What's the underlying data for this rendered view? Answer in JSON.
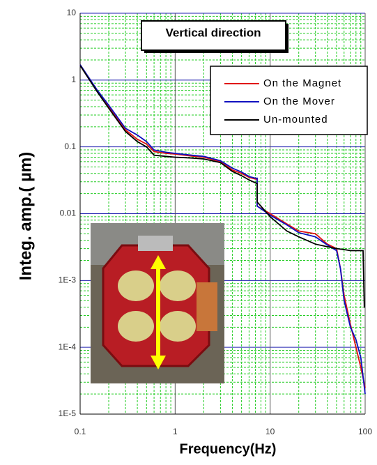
{
  "chart_data": {
    "type": "line",
    "title": "Vertical direction",
    "x_label": "Frequency(Hz)",
    "y_label": "Integ. amp.(  µm)",
    "log_x": true,
    "log_y": true,
    "grid": true,
    "legend": "upper right",
    "xlim": [
      0.1,
      100
    ],
    "xticks": [
      0.1,
      1,
      10,
      100
    ],
    "ylim": [
      1e-05,
      10
    ],
    "yticks": [
      {
        "value": 1e-05,
        "label": "1E-5"
      },
      {
        "value": 0.0001,
        "label": "1E-4"
      },
      {
        "value": 0.001,
        "label": "1E-3"
      },
      0.01,
      0.1,
      1,
      10
    ],
    "series": [
      {
        "name": "On the Magnet",
        "color": "#e01010",
        "x": [
          0.1,
          0.15,
          0.2,
          0.3,
          0.4,
          0.5,
          0.6,
          0.8,
          1,
          1.5,
          2,
          3,
          4,
          5,
          6,
          7,
          7.3,
          7.3,
          10,
          15,
          20,
          30,
          40,
          50,
          55,
          60,
          70,
          80,
          90,
          100
        ],
        "values": [
          1.7,
          0.7,
          0.4,
          0.18,
          0.13,
          0.11,
          0.085,
          0.08,
          0.078,
          0.073,
          0.07,
          0.06,
          0.045,
          0.04,
          0.035,
          0.033,
          0.033,
          0.013,
          0.01,
          0.007,
          0.0055,
          0.005,
          0.0035,
          0.003,
          0.0015,
          0.0006,
          0.00022,
          0.0001,
          5e-05,
          2.5e-05
        ]
      },
      {
        "name": "On the Mover",
        "color": "#1010c0",
        "x": [
          0.1,
          0.15,
          0.2,
          0.3,
          0.4,
          0.5,
          0.6,
          0.8,
          1,
          1.5,
          2,
          3,
          4,
          5,
          6,
          7,
          7.3,
          7.3,
          10,
          15,
          20,
          30,
          40,
          50,
          55,
          60,
          70,
          80,
          90,
          100
        ],
        "values": [
          1.7,
          0.72,
          0.42,
          0.19,
          0.15,
          0.12,
          0.09,
          0.083,
          0.08,
          0.075,
          0.072,
          0.062,
          0.048,
          0.042,
          0.036,
          0.034,
          0.034,
          0.013,
          0.0095,
          0.0068,
          0.0052,
          0.0045,
          0.0034,
          0.0028,
          0.0015,
          0.0005,
          0.0002,
          0.00013,
          7e-05,
          2e-05
        ]
      },
      {
        "name": "Un-mounted",
        "color": "#000000",
        "x": [
          0.1,
          0.15,
          0.2,
          0.3,
          0.4,
          0.5,
          0.6,
          0.8,
          1,
          1.5,
          2,
          3,
          4,
          5,
          6,
          7,
          7.3,
          7.3,
          10,
          15,
          20,
          30,
          40,
          50,
          60,
          70,
          80,
          90,
          95,
          98,
          100
        ],
        "values": [
          1.65,
          0.68,
          0.38,
          0.17,
          0.12,
          0.1,
          0.075,
          0.072,
          0.07,
          0.068,
          0.066,
          0.058,
          0.043,
          0.037,
          0.032,
          0.029,
          0.028,
          0.015,
          0.009,
          0.0055,
          0.0045,
          0.0035,
          0.0032,
          0.003,
          0.0029,
          0.0028,
          0.0028,
          0.0028,
          0.0028,
          0.0004,
          0.0004
        ]
      }
    ]
  }
}
